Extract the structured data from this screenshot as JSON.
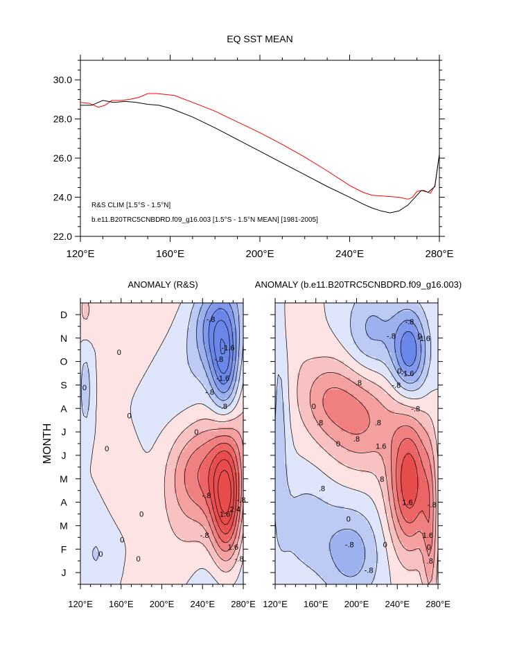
{
  "colors": {
    "red_line": "#ff0000",
    "black_line": "#000000",
    "pos": [
      "#fde3e3",
      "#f9c2c2",
      "#f5a0a0",
      "#f08080",
      "#ec6464",
      "#e84c4c"
    ],
    "neg": [
      "#dfe6fb",
      "#bccaf4",
      "#9db1ef",
      "#8199ec",
      "#6a86e8"
    ]
  },
  "chart_data": [
    {
      "type": "line",
      "title": "EQ SST MEAN",
      "xlim": [
        120,
        280
      ],
      "ylim": [
        22,
        31
      ],
      "x_ticks": [
        "120°E",
        "160°E",
        "200°E",
        "240°E",
        "280°E"
      ],
      "y_ticks": [
        "22.0",
        "24.0",
        "26.0",
        "28.0",
        "30.0"
      ],
      "grid": false,
      "series": [
        {
          "name": "R&S CLIM [1.5°S - 1.5°N]",
          "color": "#ff0000",
          "x": [
            120,
            124,
            128,
            131,
            134,
            138,
            142,
            146,
            150,
            154,
            158,
            162,
            170,
            180,
            190,
            200,
            210,
            220,
            230,
            240,
            246,
            250,
            256,
            262,
            266,
            268,
            270,
            273,
            276,
            278,
            280
          ],
          "y": [
            28.85,
            28.8,
            28.6,
            28.7,
            28.95,
            28.95,
            29.0,
            29.1,
            29.3,
            29.3,
            29.25,
            29.2,
            28.85,
            28.4,
            27.85,
            27.3,
            26.7,
            26.05,
            25.35,
            24.6,
            24.25,
            24.1,
            24.05,
            24.0,
            23.9,
            24.0,
            24.3,
            24.35,
            24.2,
            24.6,
            26.2
          ]
        },
        {
          "name": "b.e11.B20TRC5CNBDRD.f09_g16.003 [1.5°S - 1.5°N MEAN] [1981-2005]",
          "color": "#000000",
          "x": [
            120,
            125,
            130,
            135,
            140,
            145,
            150,
            155,
            160,
            170,
            180,
            190,
            200,
            210,
            220,
            230,
            240,
            246,
            250,
            254,
            258,
            262,
            266,
            270,
            272,
            275,
            278,
            280
          ],
          "y": [
            28.7,
            28.7,
            28.95,
            28.85,
            28.9,
            28.85,
            28.75,
            28.7,
            28.55,
            28.1,
            27.55,
            26.95,
            26.35,
            25.75,
            25.15,
            24.55,
            24.0,
            23.65,
            23.45,
            23.3,
            23.2,
            23.3,
            23.6,
            24.1,
            24.35,
            24.25,
            24.55,
            26.2
          ]
        }
      ]
    },
    {
      "type": "heatmap",
      "title": "ANOMALY (R&S)",
      "ylabel": "MONTH",
      "x_ticks": [
        "120°E",
        "160°E",
        "200°E",
        "240°E",
        "280°E"
      ],
      "y_ticks": [
        "J",
        "F",
        "M",
        "A",
        "M",
        "J",
        "J",
        "A",
        "S",
        "O",
        "N",
        "D"
      ],
      "contour_labels": [
        "0",
        "-.8",
        "-1.6",
        ".8",
        "1.6",
        "2.4"
      ],
      "features": [
        {
          "kind": "warm",
          "lon": 264,
          "month": 3.5,
          "peak": 2.6
        },
        {
          "kind": "cold",
          "lon": 262,
          "month": 9.3,
          "peak": -1.9
        }
      ]
    },
    {
      "type": "heatmap",
      "title": "ANOMALY (b.e11.B20TRC5CNBDRD.f09_g16.003)",
      "x_ticks": [
        "120°E",
        "160°E",
        "200°E",
        "240°E",
        "280°E"
      ],
      "contour_labels": [
        "0",
        "-.8",
        "-1.6",
        ".8",
        "1.6"
      ],
      "features": [
        {
          "kind": "warm",
          "lon": 252,
          "month": 4.3,
          "peak": 2.3
        },
        {
          "kind": "cold",
          "lon": 252,
          "month": 9.9,
          "peak": -1.9
        },
        {
          "kind": "cold",
          "lon": 195,
          "month": 1.3,
          "peak": -1.0
        }
      ]
    }
  ]
}
